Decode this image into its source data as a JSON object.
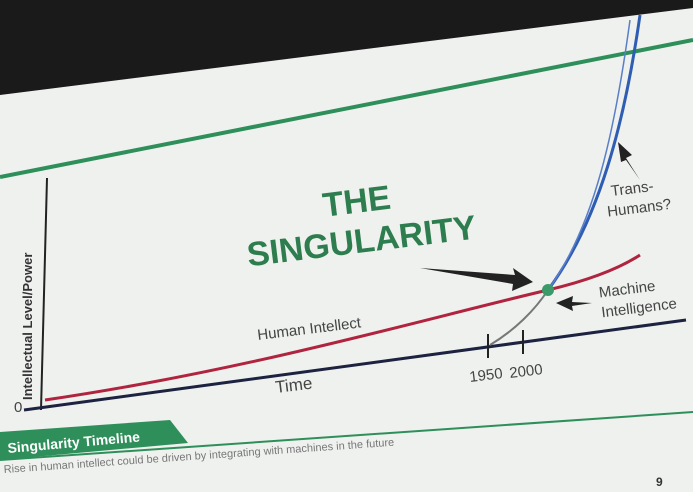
{
  "title": [
    "THE",
    "SINGULARITY"
  ],
  "labels": {
    "y_axis": "Intellectual Level/Power",
    "origin": "0",
    "human_intellect": "Human Intellect",
    "time": "Time",
    "ticks": [
      "1950",
      "2000"
    ],
    "machine": [
      "Machine",
      "Intelligence"
    ],
    "trans": [
      "Trans-",
      "Humans?"
    ]
  },
  "footer": {
    "title": "Singularity Timeline",
    "caption": "Rise in human intellect could be driven by integrating with machines in the future",
    "page": "9"
  }
}
